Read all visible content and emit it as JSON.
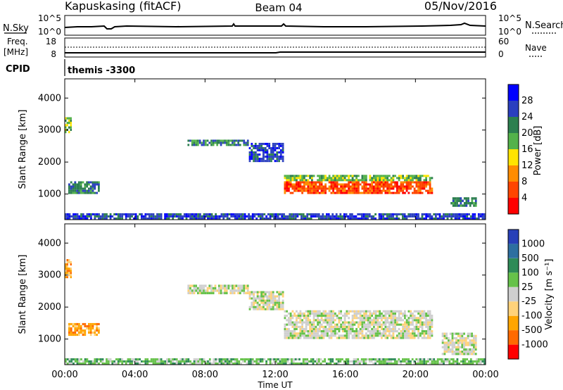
{
  "header": {
    "station": "Kapuskasing (fitACF)",
    "beam": "Beam 04",
    "date": "05/Nov/2016"
  },
  "top_panels": {
    "nsky_label": "N.Sky",
    "nsky_ticks": [
      "10^5",
      "10^0"
    ],
    "nsearch_label": "N.Search",
    "nsearch_ticks": [
      "10^5",
      "10^0"
    ],
    "freq_label_1": "Freq.",
    "freq_label_2": "[MHz]",
    "freq_ticks": [
      "18",
      "8"
    ],
    "nave_label": "Nave",
    "nave_ticks": [
      "60",
      "0"
    ],
    "cpid_label": "CPID",
    "cpid_text": "themis -3300"
  },
  "chart_data": [
    {
      "type": "heatmap",
      "name": "power",
      "ylabel": "Slant Range [km]",
      "yticks": [
        "4000",
        "3000",
        "2000",
        "1000"
      ],
      "ylim": [
        200,
        4600
      ],
      "colorbar_label": "Power [dB]",
      "colorbar_ticks": [
        "28",
        "24",
        "20",
        "16",
        "12",
        "8",
        "4"
      ],
      "colors": [
        "#0000ff",
        "#2a3fbf",
        "#2c7f4f",
        "#53b24a",
        "#ffe400",
        "#ff8c00",
        "#ff4500",
        "#ff0000"
      ],
      "regions": [
        {
          "t": [
            0.0,
            0.4
          ],
          "r": [
            2900,
            3400
          ],
          "level": 3
        },
        {
          "t": [
            0.2,
            2.0
          ],
          "r": [
            1000,
            1400
          ],
          "level": 2
        },
        {
          "t": [
            7.0,
            10.5
          ],
          "r": [
            2500,
            2700
          ],
          "level": 2
        },
        {
          "t": [
            10.5,
            12.5
          ],
          "r": [
            2000,
            2600
          ],
          "level": 1
        },
        {
          "t": [
            12.5,
            21.0
          ],
          "r": [
            1000,
            1400
          ],
          "level": 6
        },
        {
          "t": [
            12.5,
            21.0
          ],
          "r": [
            1400,
            1600
          ],
          "level": 3
        },
        {
          "t": [
            22.0,
            23.5
          ],
          "r": [
            600,
            900
          ],
          "level": 2
        },
        {
          "t": [
            0.0,
            24.0
          ],
          "r": [
            200,
            400
          ],
          "level": 1
        }
      ]
    },
    {
      "type": "heatmap",
      "name": "velocity",
      "ylabel": "Slant Range [km]",
      "yticks": [
        "4000",
        "3000",
        "2000",
        "1000"
      ],
      "ylim": [
        200,
        4600
      ],
      "colorbar_label": "Velocity [m s⁻¹]",
      "colorbar_ticks": [
        "1000",
        "500",
        "100",
        "25",
        "-25",
        "-100",
        "-500",
        "-1000"
      ],
      "colors": [
        "#2840b8",
        "#2d6fa0",
        "#2e8b57",
        "#66c24a",
        "#cfcfcf",
        "#ffd27a",
        "#ffa500",
        "#ff6a00",
        "#ff0000"
      ],
      "regions": [
        {
          "t": [
            0.0,
            0.4
          ],
          "r": [
            2900,
            3500
          ],
          "level": 6
        },
        {
          "t": [
            0.2,
            2.0
          ],
          "r": [
            1100,
            1500
          ],
          "level": 6
        },
        {
          "t": [
            7.0,
            10.5
          ],
          "r": [
            2400,
            2700
          ],
          "level": 4
        },
        {
          "t": [
            10.5,
            12.5
          ],
          "r": [
            1900,
            2500
          ],
          "level": 4
        },
        {
          "t": [
            12.5,
            21.0
          ],
          "r": [
            1000,
            1900
          ],
          "level": 4
        },
        {
          "t": [
            21.5,
            23.5
          ],
          "r": [
            500,
            1200
          ],
          "level": 4
        },
        {
          "t": [
            0.0,
            24.0
          ],
          "r": [
            200,
            400
          ],
          "level": 3
        }
      ]
    }
  ],
  "x_axis": {
    "xlabel": "Time UT",
    "xticks": [
      "00:00",
      "04:00",
      "08:00",
      "12:00",
      "16:00",
      "20:00",
      "00:00"
    ],
    "xlim": [
      0,
      24
    ]
  }
}
